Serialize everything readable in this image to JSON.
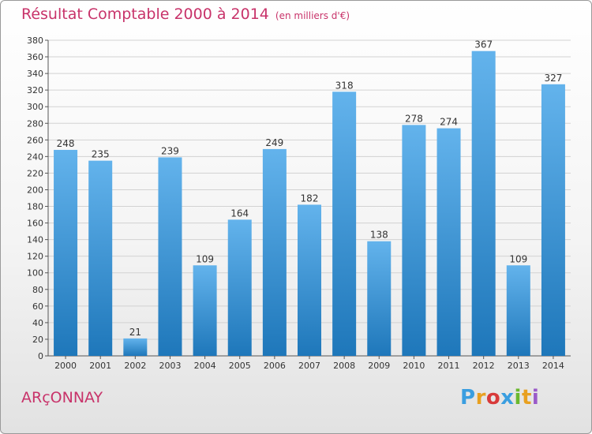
{
  "header": {
    "title": "Résultat Comptable 2000 à 2014",
    "subtitle": "(en milliers d'€)"
  },
  "footer": {
    "place": "ARçONNAY",
    "brand_letters": [
      "P",
      "r",
      "o",
      "x",
      "i",
      "t",
      "i"
    ],
    "brand_colors": [
      "#3a9ee0",
      "#e8a020",
      "#d83a3a",
      "#3a9ee0",
      "#6ab82e",
      "#e8a020",
      "#9a5ac8"
    ]
  },
  "colors": {
    "accent": "#c8336a",
    "bar_top": "#63b3ec",
    "bar_bottom": "#1e77ba",
    "grid": "#d2d2d2"
  },
  "chart_data": {
    "type": "bar",
    "title": "Résultat Comptable 2000 à 2014",
    "subtitle": "(en milliers d'€)",
    "categories": [
      "2000",
      "2001",
      "2002",
      "2003",
      "2004",
      "2005",
      "2006",
      "2007",
      "2008",
      "2009",
      "2010",
      "2011",
      "2012",
      "2013",
      "2014"
    ],
    "values": [
      248,
      235,
      21,
      239,
      109,
      164,
      249,
      182,
      318,
      138,
      278,
      274,
      367,
      109,
      327
    ],
    "ylim": [
      0,
      380
    ],
    "ytick_step": 20,
    "grid": true,
    "data_labels": true
  }
}
